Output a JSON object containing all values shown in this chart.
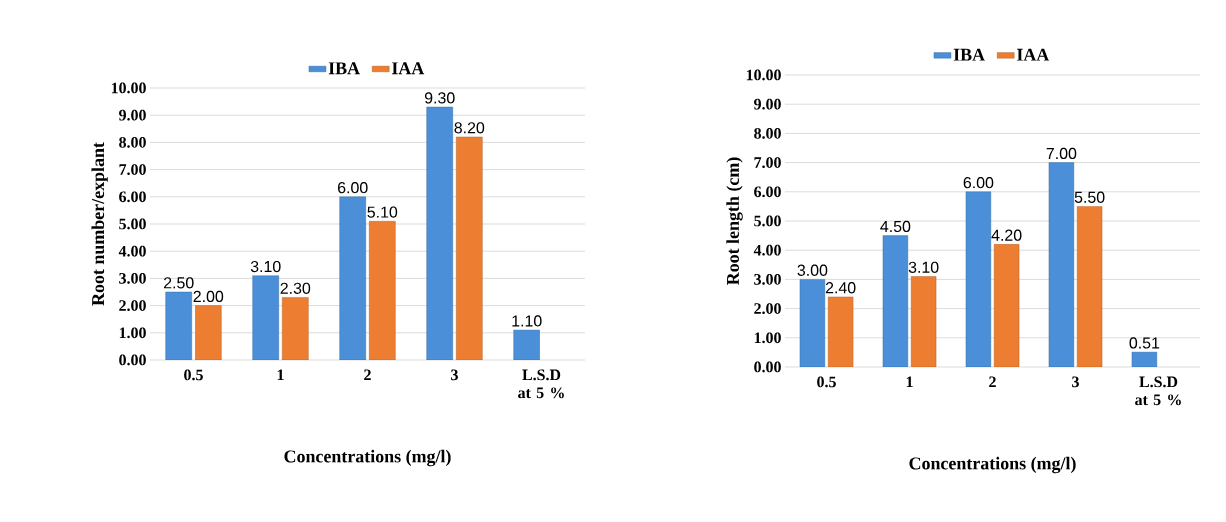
{
  "chart_data": [
    {
      "type": "bar",
      "categories": [
        "0.5",
        "1",
        "2",
        "3",
        "L.S.D at 5 %"
      ],
      "xlabel": "Concentrations (mg/l)",
      "ylabel": "Root number/explant",
      "ylim": [
        0,
        10
      ],
      "yticks": [
        {
          "value": 0,
          "label": "0.00"
        },
        {
          "value": 1,
          "label": "1.00"
        },
        {
          "value": 2,
          "label": "2.00"
        },
        {
          "value": 3,
          "label": "3.00"
        },
        {
          "value": 4,
          "label": "4.00"
        },
        {
          "value": 5,
          "label": "5.00"
        },
        {
          "value": 6,
          "label": "6.00"
        },
        {
          "value": 7,
          "label": "7.00"
        },
        {
          "value": 8,
          "label": "8.00"
        },
        {
          "value": 9,
          "label": "9.00"
        },
        {
          "value": 10,
          "label": "10.00"
        }
      ],
      "grid": "y",
      "legend": "top",
      "series": [
        {
          "name": "IBA",
          "color": "#4a8fd8",
          "values": [
            2.5,
            3.1,
            6.0,
            9.3,
            1.1
          ],
          "value_labels": [
            "2.50",
            "3.10",
            "6.00",
            "9.30",
            "1.10"
          ]
        },
        {
          "name": "IAA",
          "color": "#ed7d31",
          "values": [
            2.0,
            2.3,
            5.1,
            8.2,
            null
          ],
          "value_labels": [
            "2.00",
            "2.30",
            "5.10",
            "8.20",
            null
          ]
        }
      ]
    },
    {
      "type": "bar",
      "categories": [
        "0.5",
        "1",
        "2",
        "3",
        "L.S.D at 5 %"
      ],
      "xlabel": "Concentrations (mg/l)",
      "ylabel": "Root length (cm)",
      "ylim": [
        0,
        10
      ],
      "yticks": [
        {
          "value": 0,
          "label": "0.00"
        },
        {
          "value": 1,
          "label": "1.00"
        },
        {
          "value": 2,
          "label": "2.00"
        },
        {
          "value": 3,
          "label": "3.00"
        },
        {
          "value": 4,
          "label": "4.00"
        },
        {
          "value": 5,
          "label": "5.00"
        },
        {
          "value": 6,
          "label": "6.00"
        },
        {
          "value": 7,
          "label": "7.00"
        },
        {
          "value": 8,
          "label": "8.00"
        },
        {
          "value": 9,
          "label": "9.00"
        },
        {
          "value": 10,
          "label": "10.00"
        }
      ],
      "grid": "y",
      "legend": "top",
      "series": [
        {
          "name": "IBA",
          "color": "#4a8fd8",
          "values": [
            3.0,
            4.5,
            6.0,
            7.0,
            0.51
          ],
          "value_labels": [
            "3.00",
            "4.50",
            "6.00",
            "7.00",
            "0.51"
          ]
        },
        {
          "name": "IAA",
          "color": "#ed7d31",
          "values": [
            2.4,
            3.1,
            4.2,
            5.5,
            null
          ],
          "value_labels": [
            "2.40",
            "3.10",
            "4.20",
            "5.50",
            null
          ]
        }
      ]
    }
  ]
}
